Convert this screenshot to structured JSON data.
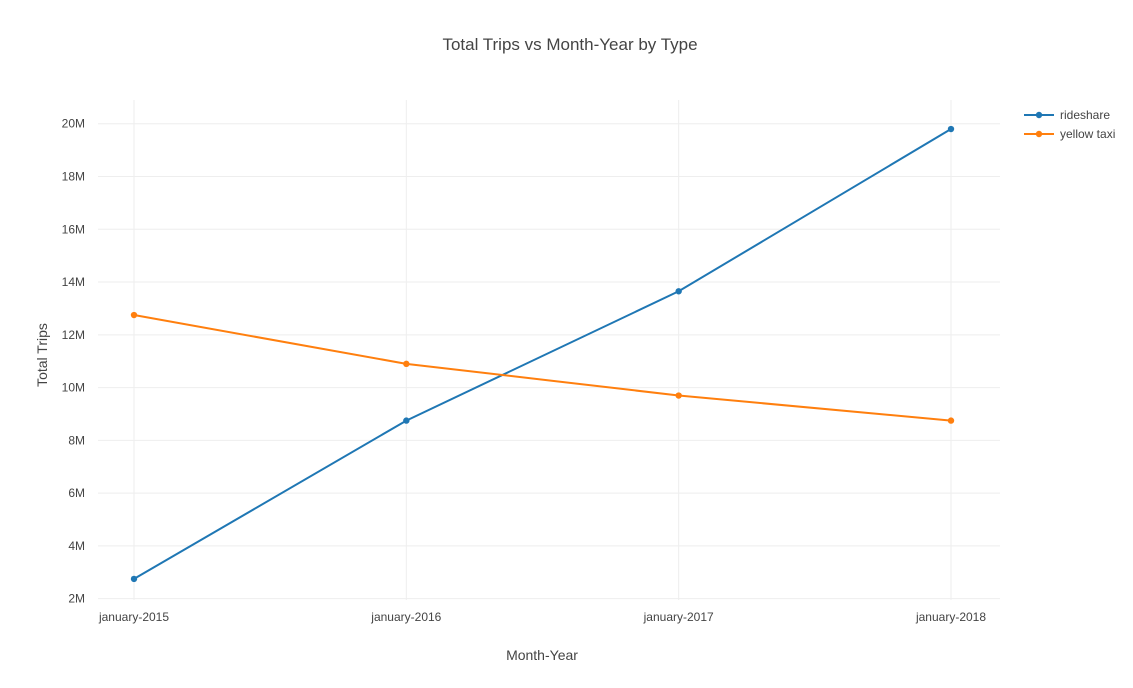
{
  "chart_data": {
    "type": "line",
    "title": "Total Trips vs Month-Year by Type",
    "xlabel": "Month-Year",
    "ylabel": "Total Trips",
    "categories": [
      "january-2015",
      "january-2016",
      "january-2017",
      "january-2018"
    ],
    "y_ticks": [
      2000000,
      4000000,
      6000000,
      8000000,
      10000000,
      12000000,
      14000000,
      16000000,
      18000000,
      20000000
    ],
    "y_tick_labels": [
      "2M",
      "4M",
      "6M",
      "8M",
      "10M",
      "12M",
      "14M",
      "16M",
      "18M",
      "20M"
    ],
    "ylim": [
      1950000,
      20900000
    ],
    "grid": true,
    "legend_position": "top-right",
    "series": [
      {
        "name": "rideshare",
        "color": "#1f77b4",
        "values": [
          2750000,
          8750000,
          13650000,
          19800000
        ]
      },
      {
        "name": "yellow taxi",
        "color": "#ff7f0e",
        "values": [
          12750000,
          10900000,
          9700000,
          8750000
        ]
      }
    ]
  }
}
